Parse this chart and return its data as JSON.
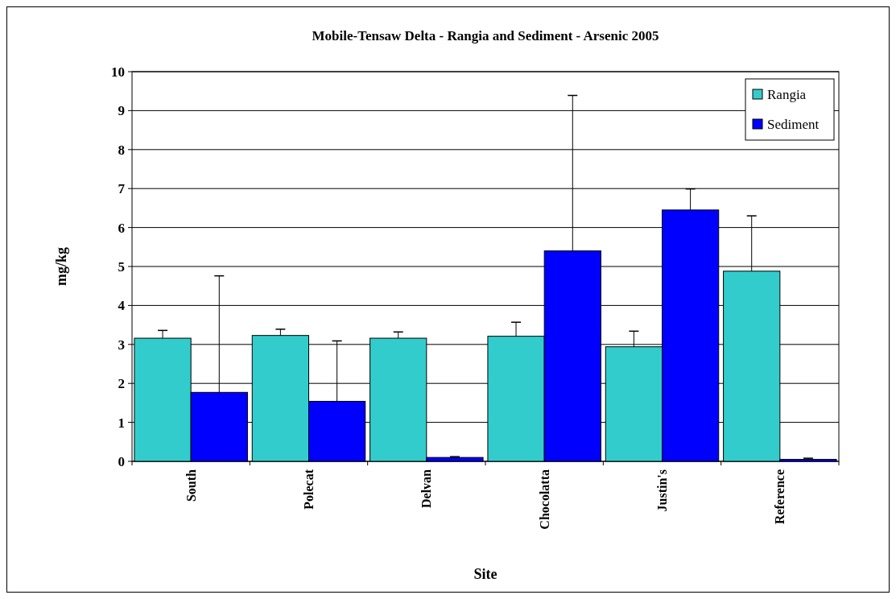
{
  "chart_data": {
    "type": "bar",
    "title": "Mobile-Tensaw Delta  - Rangia and Sediment - Arsenic 2005",
    "xlabel": "Site",
    "ylabel": "mg/kg",
    "categories": [
      "South",
      "Polecat",
      "Delvan",
      "Chocolatta",
      "Justin's",
      "Reference"
    ],
    "series": [
      {
        "name": "Rangia",
        "color": "#33cccc",
        "values": [
          3.16,
          3.23,
          3.16,
          3.21,
          2.94,
          4.88
        ],
        "errors": [
          [
            3.16,
            3.36
          ],
          [
            3.23,
            3.39
          ],
          [
            3.16,
            3.32
          ],
          [
            3.21,
            3.57
          ],
          [
            2.94,
            3.34
          ],
          [
            4.88,
            6.3
          ]
        ]
      },
      {
        "name": "Sediment",
        "color": "#0000ff",
        "values": [
          1.77,
          1.54,
          0.1,
          5.4,
          6.45,
          0.05
        ],
        "errors": [
          [
            1.77,
            4.76
          ],
          [
            1.54,
            3.09
          ],
          [
            0.1,
            0.12
          ],
          [
            5.4,
            9.39
          ],
          [
            6.45,
            6.99
          ],
          [
            0.05,
            0.08
          ]
        ]
      }
    ],
    "ylim": [
      0,
      10
    ],
    "yticks": [
      0,
      1,
      2,
      3,
      4,
      5,
      6,
      7,
      8,
      9,
      10
    ],
    "grid": "y",
    "legend": "top right"
  }
}
